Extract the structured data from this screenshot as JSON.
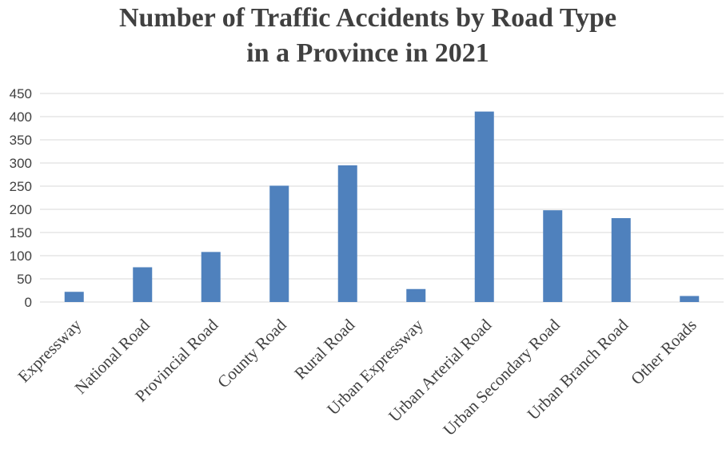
{
  "chart_data": {
    "type": "bar",
    "title_lines": [
      "Number of Traffic Accidents by Road Type",
      "in a Province in 2021"
    ],
    "categories": [
      "Expressway",
      "National Road",
      "Provincial Road",
      "County Road",
      "Rural Road",
      "Urban Expressway",
      "Urban Arterial Road",
      "Urban Secondary Road",
      "Urban Branch Road",
      "Other Roads"
    ],
    "values": [
      22,
      75,
      108,
      251,
      295,
      28,
      411,
      198,
      181,
      13
    ],
    "ylim": [
      0,
      450
    ],
    "yticks": [
      "0",
      "50",
      "100",
      "150",
      "200",
      "250",
      "300",
      "350",
      "400",
      "450"
    ],
    "bar_color": "#4f81bd",
    "grid": true,
    "legend": "none",
    "xlabel": "",
    "ylabel": ""
  }
}
